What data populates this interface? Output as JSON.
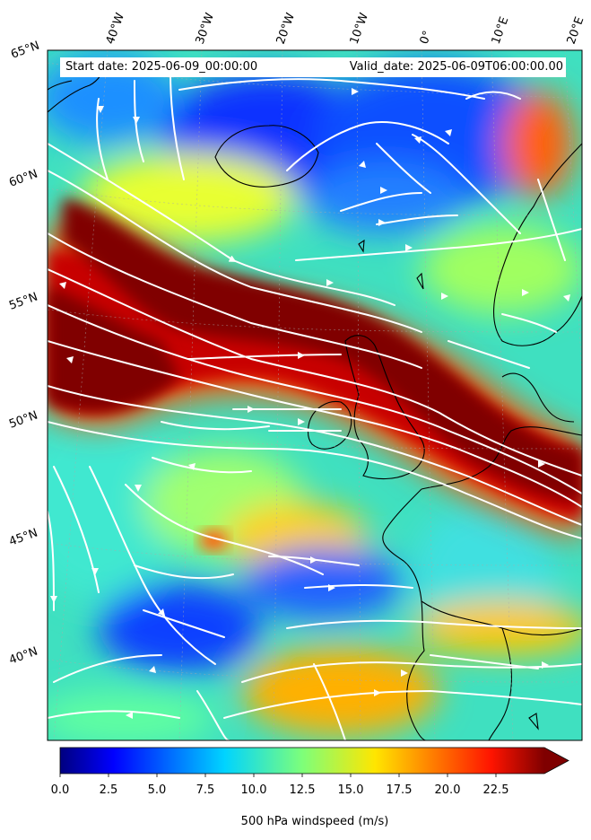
{
  "header": {
    "start_date": "Start date: 2025-06-09_00:00:00",
    "valid_date": "Valid_date: 2025-06-09T06:00:00.00"
  },
  "map": {
    "field": "500 hPa windspeed",
    "lon_labels": [
      "40°W",
      "30°W",
      "20°W",
      "10°W",
      "0°",
      "10°E",
      "20°E"
    ],
    "lat_labels": [
      "65°N",
      "60°N",
      "55°N",
      "50°N",
      "45°N",
      "40°N"
    ],
    "colormap": "jet"
  },
  "colorbar": {
    "label": "500 hPa windspeed (m/s)",
    "ticks": [
      "0.0",
      "2.5",
      "5.0",
      "7.5",
      "10.0",
      "12.5",
      "15.0",
      "17.5",
      "20.0",
      "22.5"
    ],
    "min": 0,
    "max": 25,
    "extend": "max"
  }
}
